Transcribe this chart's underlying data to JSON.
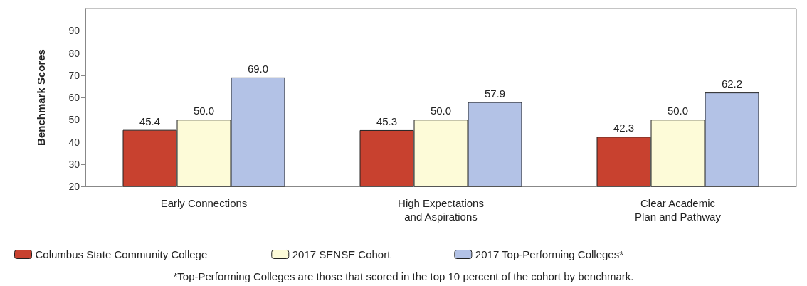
{
  "chart_data": {
    "type": "bar",
    "ylabel": "Benchmark Scores",
    "categories": [
      "Early Connections",
      "High Expectations\nand Aspirations",
      "Clear Academic\nPlan and Pathway"
    ],
    "series": [
      {
        "name": "Columbus State Community College",
        "color": "#c8412f",
        "values": [
          45.4,
          45.3,
          42.3
        ],
        "value_labels": [
          "45.4",
          "45.3",
          "42.3"
        ]
      },
      {
        "name": "2017 SENSE Cohort",
        "color": "#fdfbd8",
        "values": [
          50.0,
          50.0,
          50.0
        ],
        "value_labels": [
          "50.0",
          "50.0",
          "50.0"
        ]
      },
      {
        "name": "2017 Top-Performing Colleges*",
        "color": "#b3c2e6",
        "values": [
          69.0,
          57.9,
          62.2
        ],
        "value_labels": [
          "69.0",
          "57.9",
          "62.2"
        ]
      }
    ],
    "ylim": [
      20,
      100
    ],
    "yticks": [
      20,
      30,
      40,
      50,
      60,
      70,
      80,
      90
    ],
    "grid": false,
    "legend": "bottom",
    "annotations": [
      "*Top-Performing Colleges are those that scored in the top 10 percent of the cohort by benchmark."
    ]
  }
}
